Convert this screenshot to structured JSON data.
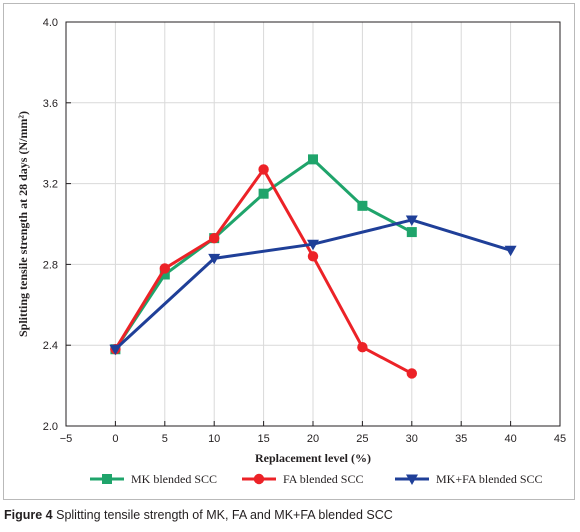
{
  "chart_data": {
    "type": "line",
    "xlabel": "Replacement level (%)",
    "ylabel": "Splitting tensile strength at 28 days (N/mm²)",
    "xlim": [
      -5,
      45
    ],
    "ylim": [
      2.0,
      4.0
    ],
    "x_ticks": [
      "−5",
      "0",
      "5",
      "10",
      "15",
      "20",
      "25",
      "30",
      "35",
      "40",
      "45"
    ],
    "y_ticks": [
      "2.0",
      "2.4",
      "2.8",
      "3.2",
      "3.6",
      "4.0"
    ],
    "grid": true,
    "legend_position": "bottom",
    "series": [
      {
        "name": "MK blended SCC",
        "color": "#1fa46b",
        "marker": "square",
        "x": [
          0,
          5,
          10,
          15,
          20,
          25,
          30
        ],
        "y": [
          2.38,
          2.75,
          2.93,
          3.15,
          3.32,
          3.09,
          2.96
        ]
      },
      {
        "name": "FA blended SCC",
        "color": "#ec2227",
        "marker": "circle",
        "x": [
          0,
          5,
          10,
          15,
          20,
          25,
          30
        ],
        "y": [
          2.38,
          2.78,
          2.93,
          3.27,
          2.84,
          2.39,
          2.26
        ]
      },
      {
        "name": "MK+FA blended SCC",
        "color": "#1f3f98",
        "marker": "triangle-down",
        "x": [
          0,
          10,
          20,
          30,
          40
        ],
        "y": [
          2.38,
          2.83,
          2.9,
          3.02,
          2.87
        ]
      }
    ]
  },
  "caption": {
    "label": "Figure 4",
    "text": "Splitting tensile strength of MK, FA and MK+FA blended SCC"
  }
}
